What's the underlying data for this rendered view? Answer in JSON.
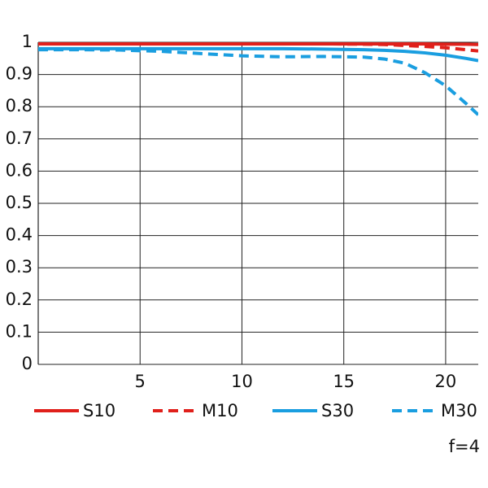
{
  "chart_data": {
    "type": "line",
    "annotation": "f=4",
    "x": [
      0,
      2,
      4,
      6,
      8,
      10,
      12,
      14,
      16,
      17,
      18,
      19,
      20,
      21,
      21.6
    ],
    "series": [
      {
        "name": "S10",
        "color": "#e0201b",
        "dashed": false,
        "values": [
          0.995,
          0.995,
          0.995,
          0.995,
          0.995,
          0.995,
          0.995,
          0.995,
          0.995,
          0.995,
          0.995,
          0.995,
          0.994,
          0.994,
          0.993
        ]
      },
      {
        "name": "M10",
        "color": "#e0201b",
        "dashed": true,
        "values": [
          0.995,
          0.995,
          0.995,
          0.995,
          0.995,
          0.995,
          0.995,
          0.995,
          0.994,
          0.993,
          0.99,
          0.987,
          0.983,
          0.977,
          0.973
        ]
      },
      {
        "name": "S30",
        "color": "#1a9ee0",
        "dashed": false,
        "values": [
          0.98,
          0.98,
          0.98,
          0.98,
          0.98,
          0.98,
          0.98,
          0.979,
          0.977,
          0.975,
          0.972,
          0.967,
          0.96,
          0.95,
          0.943
        ]
      },
      {
        "name": "M30",
        "color": "#1a9ee0",
        "dashed": true,
        "values": [
          0.977,
          0.977,
          0.976,
          0.972,
          0.965,
          0.958,
          0.955,
          0.956,
          0.954,
          0.948,
          0.935,
          0.905,
          0.865,
          0.81,
          0.775
        ]
      }
    ],
    "xlim": [
      0,
      21.6
    ],
    "xticks": [
      5,
      10,
      15,
      20
    ],
    "ylim": [
      0,
      1
    ],
    "yticks": [
      0,
      0.1,
      0.2,
      0.3,
      0.4,
      0.5,
      0.6,
      0.7,
      0.8,
      0.9,
      1
    ],
    "grid": true
  }
}
